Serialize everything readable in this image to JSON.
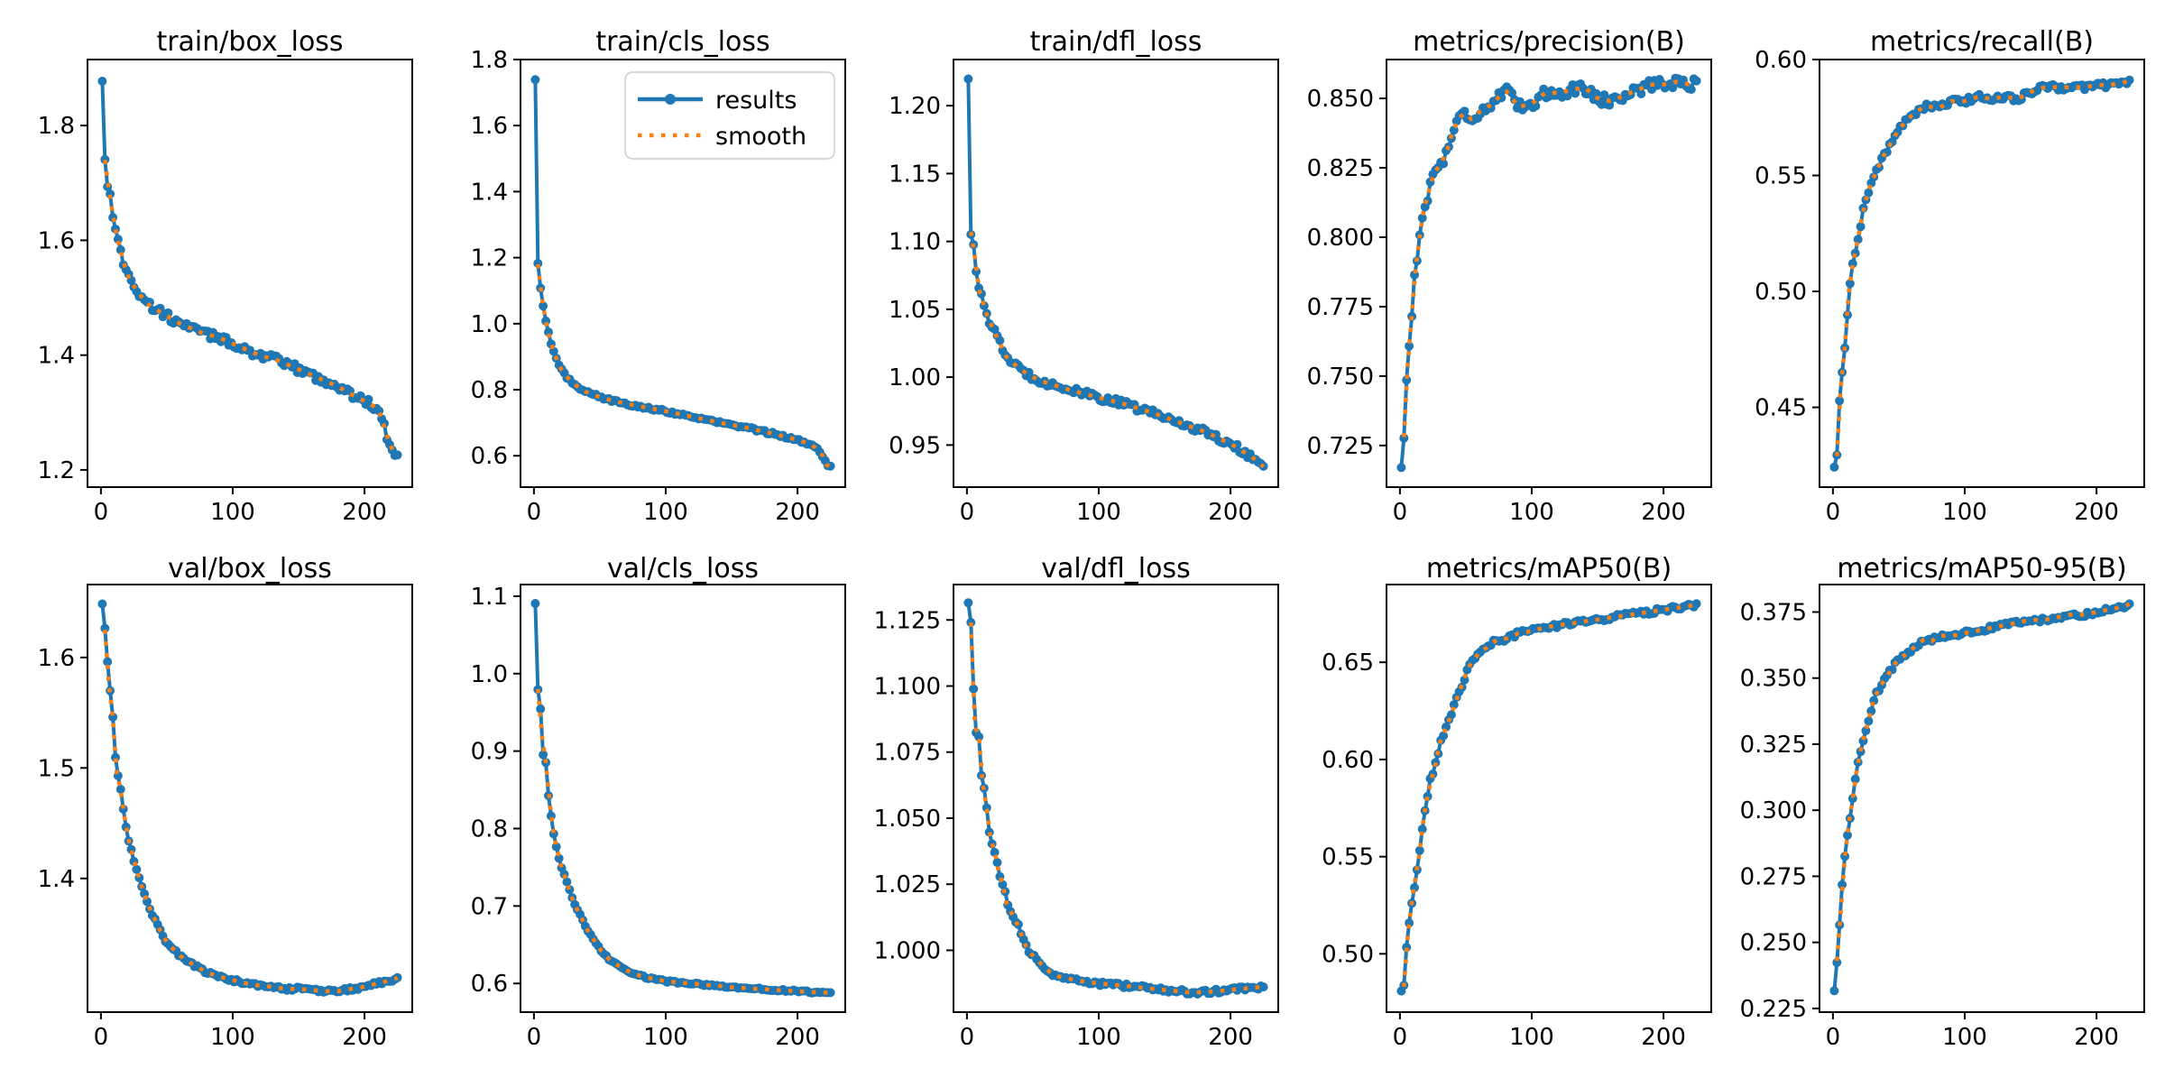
{
  "figure": {
    "legend": {
      "entries": [
        "results",
        "smooth"
      ],
      "location_plot": "train/cls_loss",
      "position": "upper right"
    },
    "colors": {
      "results_line": "#1f77b4",
      "smooth_line": "#ff7f0e",
      "axes": "#000000",
      "background": "#ffffff",
      "legend_border": "#cccccc"
    },
    "x_ticks": [
      0,
      100,
      200
    ],
    "x_range": [
      -10.2,
      236.2
    ],
    "epochs": 225,
    "grid": "off",
    "marker": "circle",
    "results_style": "solid-line-with-markers",
    "smooth_style": "dotted"
  },
  "chart_data": [
    {
      "type": "line",
      "title": "train/box_loss",
      "row": 0,
      "ylim": [
        1.17,
        1.915
      ],
      "yticks": [
        "1.2",
        "1.4",
        "1.6",
        "1.8"
      ],
      "noise": 0.007,
      "legend": false,
      "keypoints": {
        "x": [
          1,
          3,
          5,
          8,
          10,
          14,
          18,
          22,
          28,
          35,
          45,
          60,
          75,
          90,
          105,
          120,
          135,
          150,
          165,
          180,
          195,
          205,
          212,
          218,
          221,
          225
        ],
        "y": [
          1.88,
          1.74,
          1.7,
          1.665,
          1.625,
          1.59,
          1.555,
          1.53,
          1.51,
          1.49,
          1.475,
          1.455,
          1.44,
          1.43,
          1.415,
          1.4,
          1.39,
          1.375,
          1.36,
          1.345,
          1.325,
          1.315,
          1.3,
          1.25,
          1.235,
          1.225
        ]
      }
    },
    {
      "type": "line",
      "title": "train/cls_loss",
      "row": 0,
      "ylim": [
        0.505,
        1.8
      ],
      "yticks": [
        "0.6",
        "0.8",
        "1.0",
        "1.2",
        "1.4",
        "1.6",
        "1.8"
      ],
      "noise": 0.004,
      "legend": true,
      "keypoints": {
        "x": [
          1,
          3,
          5,
          7,
          9,
          12,
          15,
          20,
          25,
          30,
          40,
          50,
          60,
          80,
          100,
          120,
          140,
          160,
          180,
          200,
          210,
          218,
          222,
          225
        ],
        "y": [
          1.74,
          1.18,
          1.11,
          1.05,
          1.005,
          0.955,
          0.915,
          0.865,
          0.838,
          0.818,
          0.792,
          0.778,
          0.766,
          0.75,
          0.735,
          0.718,
          0.701,
          0.686,
          0.668,
          0.648,
          0.635,
          0.61,
          0.572,
          0.568
        ]
      }
    },
    {
      "type": "line",
      "title": "train/dfl_loss",
      "row": 0,
      "ylim": [
        0.919,
        1.234
      ],
      "yticks": [
        "0.95",
        "1.00",
        "1.05",
        "1.10",
        "1.15",
        "1.20"
      ],
      "noise": 0.0025,
      "legend": false,
      "keypoints": {
        "x": [
          1,
          3,
          5,
          7,
          9,
          12,
          15,
          20,
          25,
          30,
          40,
          50,
          60,
          70,
          80,
          100,
          120,
          140,
          160,
          180,
          200,
          210,
          218,
          225
        ],
        "y": [
          1.22,
          1.107,
          1.098,
          1.08,
          1.065,
          1.056,
          1.046,
          1.035,
          1.025,
          1.015,
          1.006,
          1.0,
          0.996,
          0.993,
          0.99,
          0.985,
          0.98,
          0.974,
          0.967,
          0.96,
          0.951,
          0.945,
          0.94,
          0.934
        ]
      }
    },
    {
      "type": "line",
      "title": "metrics/precision(B)",
      "row": 0,
      "ylim": [
        0.71,
        0.864
      ],
      "yticks": [
        "0.725",
        "0.750",
        "0.775",
        "0.800",
        "0.825",
        "0.850"
      ],
      "noise": 0.002,
      "legend": false,
      "keypoints": {
        "x": [
          1,
          2,
          3,
          5,
          7,
          9,
          11,
          13,
          15,
          18,
          21,
          25,
          30,
          35,
          40,
          45,
          50,
          55,
          60,
          70,
          80,
          85,
          90,
          100,
          110,
          120,
          130,
          140,
          150,
          160,
          170,
          180,
          190,
          200,
          210,
          220,
          225
        ],
        "y": [
          0.717,
          0.731,
          0.728,
          0.748,
          0.762,
          0.772,
          0.788,
          0.79,
          0.8,
          0.81,
          0.815,
          0.822,
          0.826,
          0.83,
          0.838,
          0.843,
          0.845,
          0.842,
          0.845,
          0.848,
          0.853,
          0.85,
          0.847,
          0.848,
          0.852,
          0.852,
          0.853,
          0.854,
          0.85,
          0.849,
          0.851,
          0.853,
          0.855,
          0.855,
          0.856,
          0.855,
          0.856
        ]
      }
    },
    {
      "type": "line",
      "title": "metrics/recall(B)",
      "row": 0,
      "ylim": [
        0.4156,
        0.6
      ],
      "yticks": [
        "0.45",
        "0.50",
        "0.55",
        "0.60"
      ],
      "noise": 0.0012,
      "legend": false,
      "keypoints": {
        "x": [
          1,
          2,
          3,
          4,
          5,
          6,
          8,
          10,
          12,
          14,
          16,
          18,
          20,
          23,
          26,
          30,
          34,
          38,
          42,
          46,
          50,
          55,
          60,
          70,
          80,
          90,
          100,
          110,
          120,
          130,
          140,
          150,
          160,
          170,
          180,
          190,
          200,
          210,
          220,
          225
        ],
        "y": [
          0.424,
          0.432,
          0.429,
          0.445,
          0.452,
          0.459,
          0.472,
          0.481,
          0.5,
          0.508,
          0.515,
          0.52,
          0.526,
          0.535,
          0.542,
          0.548,
          0.553,
          0.558,
          0.562,
          0.566,
          0.57,
          0.573,
          0.576,
          0.58,
          0.579,
          0.582,
          0.582,
          0.584,
          0.583,
          0.584,
          0.583,
          0.586,
          0.588,
          0.588,
          0.588,
          0.588,
          0.589,
          0.589,
          0.59,
          0.591
        ]
      }
    },
    {
      "type": "line",
      "title": "val/box_loss",
      "row": 1,
      "ylim": [
        1.279,
        1.666
      ],
      "yticks": [
        "1.4",
        "1.5",
        "1.6"
      ],
      "noise": 0.0015,
      "legend": false,
      "keypoints": {
        "x": [
          1,
          3,
          4,
          6,
          8,
          10,
          12,
          14,
          16,
          18,
          20,
          23,
          26,
          30,
          34,
          38,
          42,
          46,
          50,
          55,
          60,
          70,
          80,
          90,
          100,
          110,
          120,
          130,
          140,
          150,
          160,
          170,
          180,
          190,
          200,
          210,
          220,
          225
        ],
        "y": [
          1.648,
          1.625,
          1.62,
          1.575,
          1.565,
          1.525,
          1.495,
          1.49,
          1.47,
          1.455,
          1.44,
          1.425,
          1.412,
          1.396,
          1.382,
          1.37,
          1.36,
          1.35,
          1.342,
          1.336,
          1.33,
          1.322,
          1.315,
          1.311,
          1.308,
          1.305,
          1.303,
          1.302,
          1.3,
          1.3,
          1.299,
          1.298,
          1.298,
          1.3,
          1.302,
          1.305,
          1.308,
          1.31
        ]
      }
    },
    {
      "type": "line",
      "title": "val/cls_loss",
      "row": 1,
      "ylim": [
        0.563,
        1.115
      ],
      "yticks": [
        "0.6",
        "0.7",
        "0.8",
        "0.9",
        "1.0",
        "1.1"
      ],
      "noise": 0.0012,
      "legend": false,
      "keypoints": {
        "x": [
          1,
          2,
          4,
          5,
          6,
          7,
          9,
          10,
          12,
          14,
          16,
          18,
          20,
          22,
          24,
          26,
          28,
          30,
          33,
          36,
          40,
          44,
          48,
          52,
          56,
          60,
          65,
          70,
          80,
          90,
          100,
          110,
          120,
          130,
          140,
          150,
          160,
          170,
          180,
          190,
          200,
          210,
          220,
          225
        ],
        "y": [
          1.09,
          1.0,
          0.96,
          0.955,
          0.92,
          0.895,
          0.885,
          0.85,
          0.835,
          0.8,
          0.785,
          0.77,
          0.755,
          0.745,
          0.735,
          0.725,
          0.715,
          0.705,
          0.695,
          0.685,
          0.67,
          0.66,
          0.65,
          0.64,
          0.633,
          0.627,
          0.622,
          0.617,
          0.61,
          0.606,
          0.603,
          0.601,
          0.6,
          0.598,
          0.597,
          0.595,
          0.594,
          0.593,
          0.592,
          0.591,
          0.59,
          0.589,
          0.588,
          0.588
        ]
      }
    },
    {
      "type": "line",
      "title": "val/dfl_loss",
      "row": 1,
      "ylim": [
        0.9766,
        1.1384
      ],
      "yticks": [
        "1.000",
        "1.025",
        "1.050",
        "1.075",
        "1.100",
        "1.125"
      ],
      "noise": 0.0008,
      "legend": false,
      "keypoints": {
        "x": [
          1,
          2,
          3,
          4,
          5,
          6,
          7,
          8,
          9,
          10,
          12,
          14,
          16,
          18,
          20,
          22,
          24,
          26,
          28,
          30,
          33,
          36,
          40,
          44,
          48,
          52,
          56,
          60,
          65,
          70,
          80,
          90,
          100,
          110,
          120,
          130,
          140,
          150,
          160,
          170,
          180,
          190,
          200,
          210,
          220,
          225
        ],
        "y": [
          1.131,
          1.125,
          1.124,
          1.1,
          1.099,
          1.085,
          1.082,
          1.087,
          1.081,
          1.069,
          1.063,
          1.06,
          1.047,
          1.042,
          1.04,
          1.035,
          1.03,
          1.025,
          1.025,
          1.018,
          1.015,
          1.012,
          1.008,
          1.002,
          0.999,
          0.997,
          0.995,
          0.993,
          0.991,
          0.99,
          0.989,
          0.988,
          0.9875,
          0.987,
          0.9865,
          0.986,
          0.9855,
          0.985,
          0.9845,
          0.984,
          0.9842,
          0.9845,
          0.985,
          0.9855,
          0.986,
          0.986
        ]
      }
    },
    {
      "type": "line",
      "title": "metrics/mAP50(B)",
      "row": 1,
      "ylim": [
        0.47,
        0.69
      ],
      "yticks": [
        "0.50",
        "0.55",
        "0.60",
        "0.65"
      ],
      "noise": 0.0012,
      "legend": false,
      "keypoints": {
        "x": [
          1,
          2,
          3,
          4,
          5,
          6,
          7,
          8,
          9,
          10,
          12,
          14,
          16,
          18,
          20,
          22,
          24,
          26,
          28,
          30,
          33,
          36,
          40,
          44,
          48,
          52,
          56,
          60,
          65,
          70,
          75,
          80,
          90,
          100,
          110,
          120,
          130,
          140,
          150,
          160,
          170,
          180,
          190,
          200,
          210,
          220,
          225
        ],
        "y": [
          0.48,
          0.487,
          0.483,
          0.5,
          0.503,
          0.51,
          0.515,
          0.52,
          0.527,
          0.527,
          0.54,
          0.545,
          0.56,
          0.57,
          0.575,
          0.588,
          0.59,
          0.595,
          0.6,
          0.608,
          0.613,
          0.618,
          0.625,
          0.633,
          0.64,
          0.648,
          0.651,
          0.655,
          0.657,
          0.66,
          0.662,
          0.662,
          0.665,
          0.666,
          0.668,
          0.669,
          0.67,
          0.671,
          0.672,
          0.673,
          0.674,
          0.675,
          0.676,
          0.677,
          0.678,
          0.679,
          0.68
        ]
      }
    },
    {
      "type": "line",
      "title": "metrics/mAP50-95(B)",
      "row": 1,
      "ylim": [
        0.2236,
        0.3854
      ],
      "yticks": [
        "0.225",
        "0.250",
        "0.275",
        "0.300",
        "0.325",
        "0.350",
        "0.375"
      ],
      "noise": 0.0008,
      "legend": false,
      "keypoints": {
        "x": [
          1,
          2,
          3,
          4,
          5,
          6,
          7,
          8,
          9,
          10,
          12,
          14,
          16,
          18,
          20,
          22,
          24,
          26,
          28,
          30,
          33,
          36,
          40,
          44,
          48,
          52,
          56,
          60,
          65,
          70,
          75,
          80,
          90,
          100,
          110,
          120,
          130,
          140,
          150,
          160,
          170,
          180,
          190,
          200,
          210,
          220,
          225
        ],
        "y": [
          0.231,
          0.246,
          0.243,
          0.247,
          0.256,
          0.262,
          0.271,
          0.273,
          0.282,
          0.285,
          0.295,
          0.3,
          0.308,
          0.315,
          0.32,
          0.325,
          0.329,
          0.332,
          0.336,
          0.34,
          0.344,
          0.347,
          0.35,
          0.353,
          0.356,
          0.358,
          0.359,
          0.361,
          0.363,
          0.365,
          0.364,
          0.366,
          0.366,
          0.367,
          0.368,
          0.369,
          0.37,
          0.371,
          0.372,
          0.372,
          0.373,
          0.374,
          0.374,
          0.375,
          0.376,
          0.377,
          0.378
        ]
      }
    }
  ]
}
